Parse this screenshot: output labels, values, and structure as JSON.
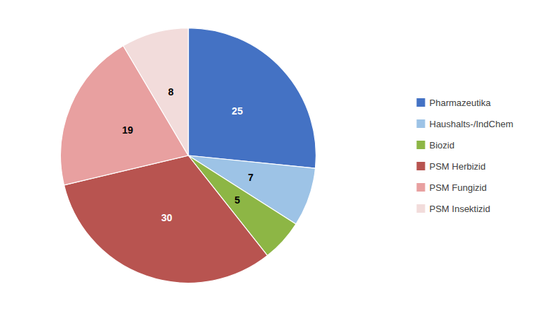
{
  "chart_data": {
    "type": "pie",
    "categories": [
      "Pharmazeutika",
      "Haushalts-/IndChem",
      "Biozid",
      "PSM Herbizid",
      "PSM Fungizid",
      "PSM Insektizid"
    ],
    "values": [
      25,
      7,
      5,
      30,
      19,
      8
    ],
    "colors": [
      "#4472C4",
      "#9DC3E6",
      "#8DB645",
      "#B85450",
      "#E8A0A0",
      "#F2DCDB"
    ],
    "data_labels": true,
    "legend": "right"
  }
}
